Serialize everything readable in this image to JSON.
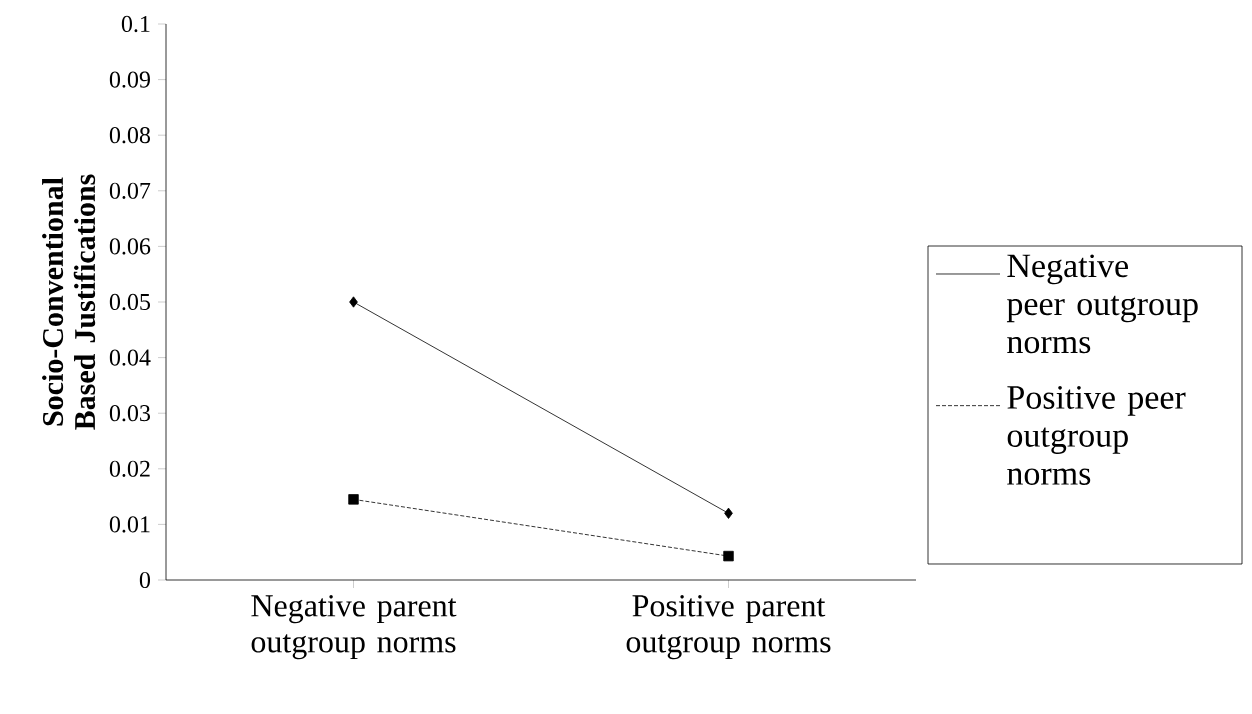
{
  "chart_data": {
    "type": "line",
    "ylabel": "Socio-Conventional Based Justifications",
    "categories": [
      "Negative parent outgroup norms",
      "Positive parent outgroup norms"
    ],
    "series": [
      {
        "name": "Negative peer outgroup norms",
        "color": "#000000",
        "values": [
          0.05,
          0.012
        ],
        "marker": "diamond",
        "line_style": "solid"
      },
      {
        "name": "Positive peer outgroup norms",
        "color": "#000000",
        "values": [
          0.0145,
          0.0043
        ],
        "marker": "square",
        "line_style": "dashed"
      }
    ],
    "ylim": [
      0,
      0.1
    ],
    "yticks": [
      0,
      0.01,
      0.02,
      0.03,
      0.04,
      0.05,
      0.06,
      0.07,
      0.08,
      0.09,
      0.1
    ],
    "grid": false,
    "legend": "right"
  }
}
